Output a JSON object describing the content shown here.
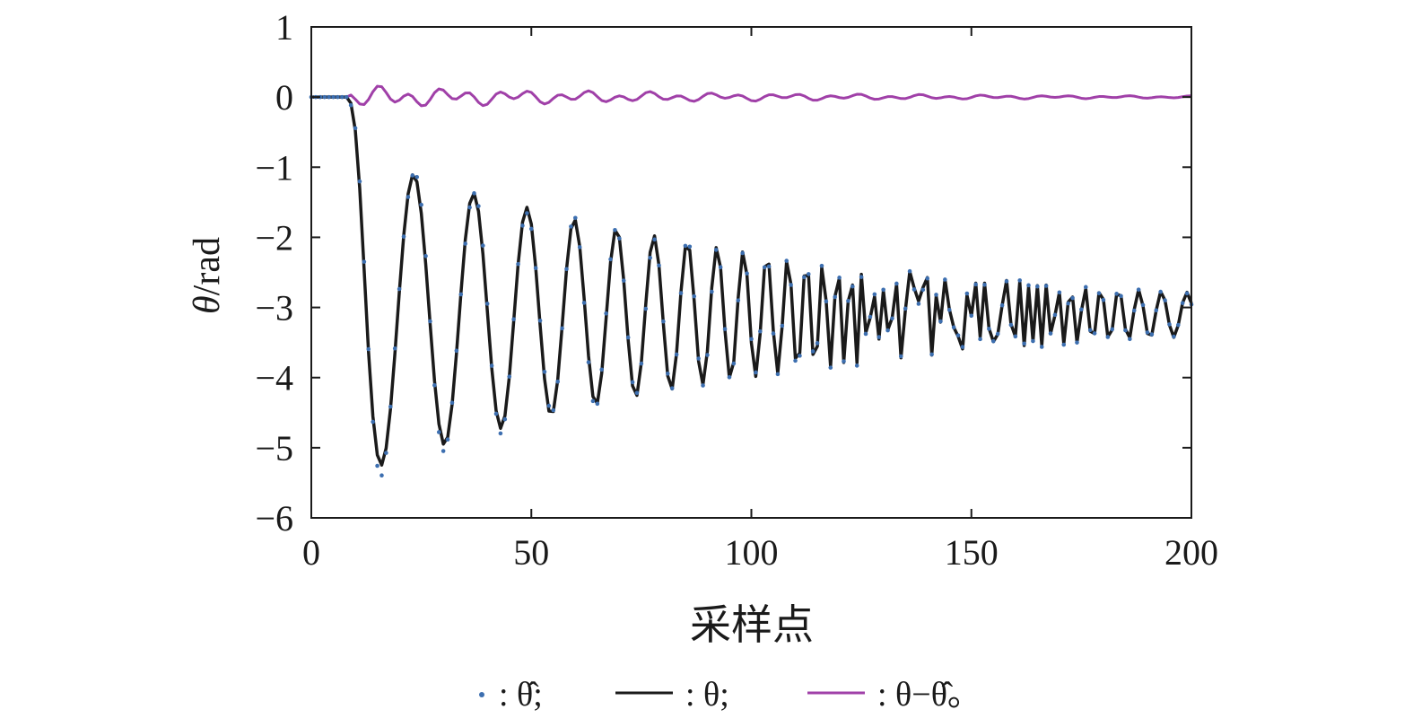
{
  "chart_data": {
    "type": "line",
    "xlabel": "采样点",
    "ylabel": "θ/rad",
    "ylabel_symbol": "θ",
    "ylabel_unit": "/rad",
    "xlim": [
      0,
      200
    ],
    "ylim": [
      -6,
      1
    ],
    "xticks": [
      0,
      50,
      100,
      150,
      200
    ],
    "xtick_labels": [
      "0",
      "50",
      "100",
      "150",
      "200"
    ],
    "yticks": [
      1,
      0,
      -1,
      -2,
      -3,
      -4,
      -5,
      -6
    ],
    "ytick_labels": [
      "1",
      "0",
      "−1",
      "−2",
      "−3",
      "−4",
      "−5",
      "−6"
    ],
    "grid": false,
    "legend_position": "bottom",
    "colors": {
      "estimate": "#3d6fb0",
      "true": "#1a1a1a",
      "error": "#a040a8",
      "axes": "#1a1a1a"
    },
    "model": {
      "onset": 8,
      "rise_width": 3.2,
      "mean_offset": -3.1,
      "amplitude": 2.35,
      "decay_rate": 0.0105,
      "period_start": 17.2,
      "period_growth": 0.0068,
      "error_amplitude": 0.18,
      "error_decay": 0.012
    },
    "series": [
      {
        "symbol": "θ̂",
        "style": "dots",
        "color_key": "estimate",
        "legend": ": θ̂;"
      },
      {
        "symbol": "θ",
        "style": "line",
        "color_key": "true",
        "legend": ": θ;"
      },
      {
        "symbol": "θ−θ̂",
        "style": "line",
        "color_key": "error",
        "legend": ": θ−θ̂。"
      }
    ],
    "legend": {
      "entry1": ": θ̂;",
      "entry2": ": θ;",
      "entry3": ": θ−θ̂。"
    }
  }
}
